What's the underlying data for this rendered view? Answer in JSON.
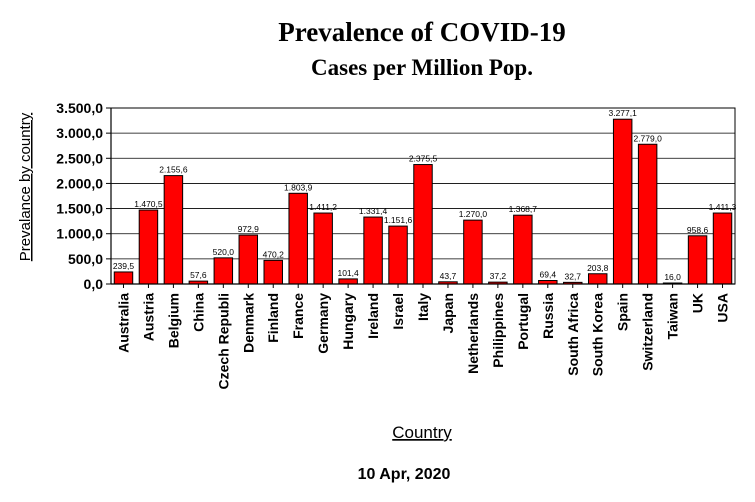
{
  "chart_data": {
    "type": "bar",
    "title": "Prevalence of COVID-19",
    "subtitle": "Cases per Million Pop.",
    "xlabel": "Country",
    "ylabel": "Prevalance by country",
    "footer": "10 Apr, 2020",
    "ylim": [
      0,
      3500
    ],
    "yticks": [
      0,
      500,
      1000,
      1500,
      2000,
      2500,
      3000,
      3500
    ],
    "ytick_labels": [
      "0,0",
      "500,0",
      "1.000,0",
      "1.500,0",
      "2.000,0",
      "2.500,0",
      "3.000,0",
      "3.500,0"
    ],
    "grid": true,
    "bar_color": "#ff0000",
    "categories": [
      "Australia",
      "Austria",
      "Belgium",
      "China",
      "Czech Republi",
      "Denmark",
      "Finland",
      "France",
      "Germany",
      "Hungary",
      "Ireland",
      "Israel",
      "Italy",
      "Japan",
      "Netherlands",
      "Philippines",
      "Portugal",
      "Russia",
      "South Africa",
      "South Korea",
      "Spain",
      "Switzerland",
      "Taiwan",
      "UK",
      "USA"
    ],
    "values": [
      239.5,
      1470.5,
      2155.6,
      57.6,
      520.0,
      972.9,
      470.2,
      1803.9,
      1411.2,
      101.4,
      1331.4,
      1151.6,
      2375.5,
      43.7,
      1270.0,
      37.2,
      1368.7,
      69.4,
      32.7,
      203.8,
      3277.1,
      2779.0,
      16.0,
      958.6,
      1411.3
    ],
    "value_labels": [
      "239,5",
      "1.470,5",
      "2.155,6",
      "57,6",
      "520,0",
      "972,9",
      "470,2",
      "1.803,9",
      "1.411,2",
      "101,4",
      "1.331,4",
      "1.151,6",
      "2.375,5",
      "43,7",
      "1.270,0",
      "37,2",
      "1.368,7",
      "69,4",
      "32,7",
      "203,8",
      "3.277,1",
      "2.779,0",
      "16,0",
      "958,6",
      "1.411,3"
    ]
  }
}
